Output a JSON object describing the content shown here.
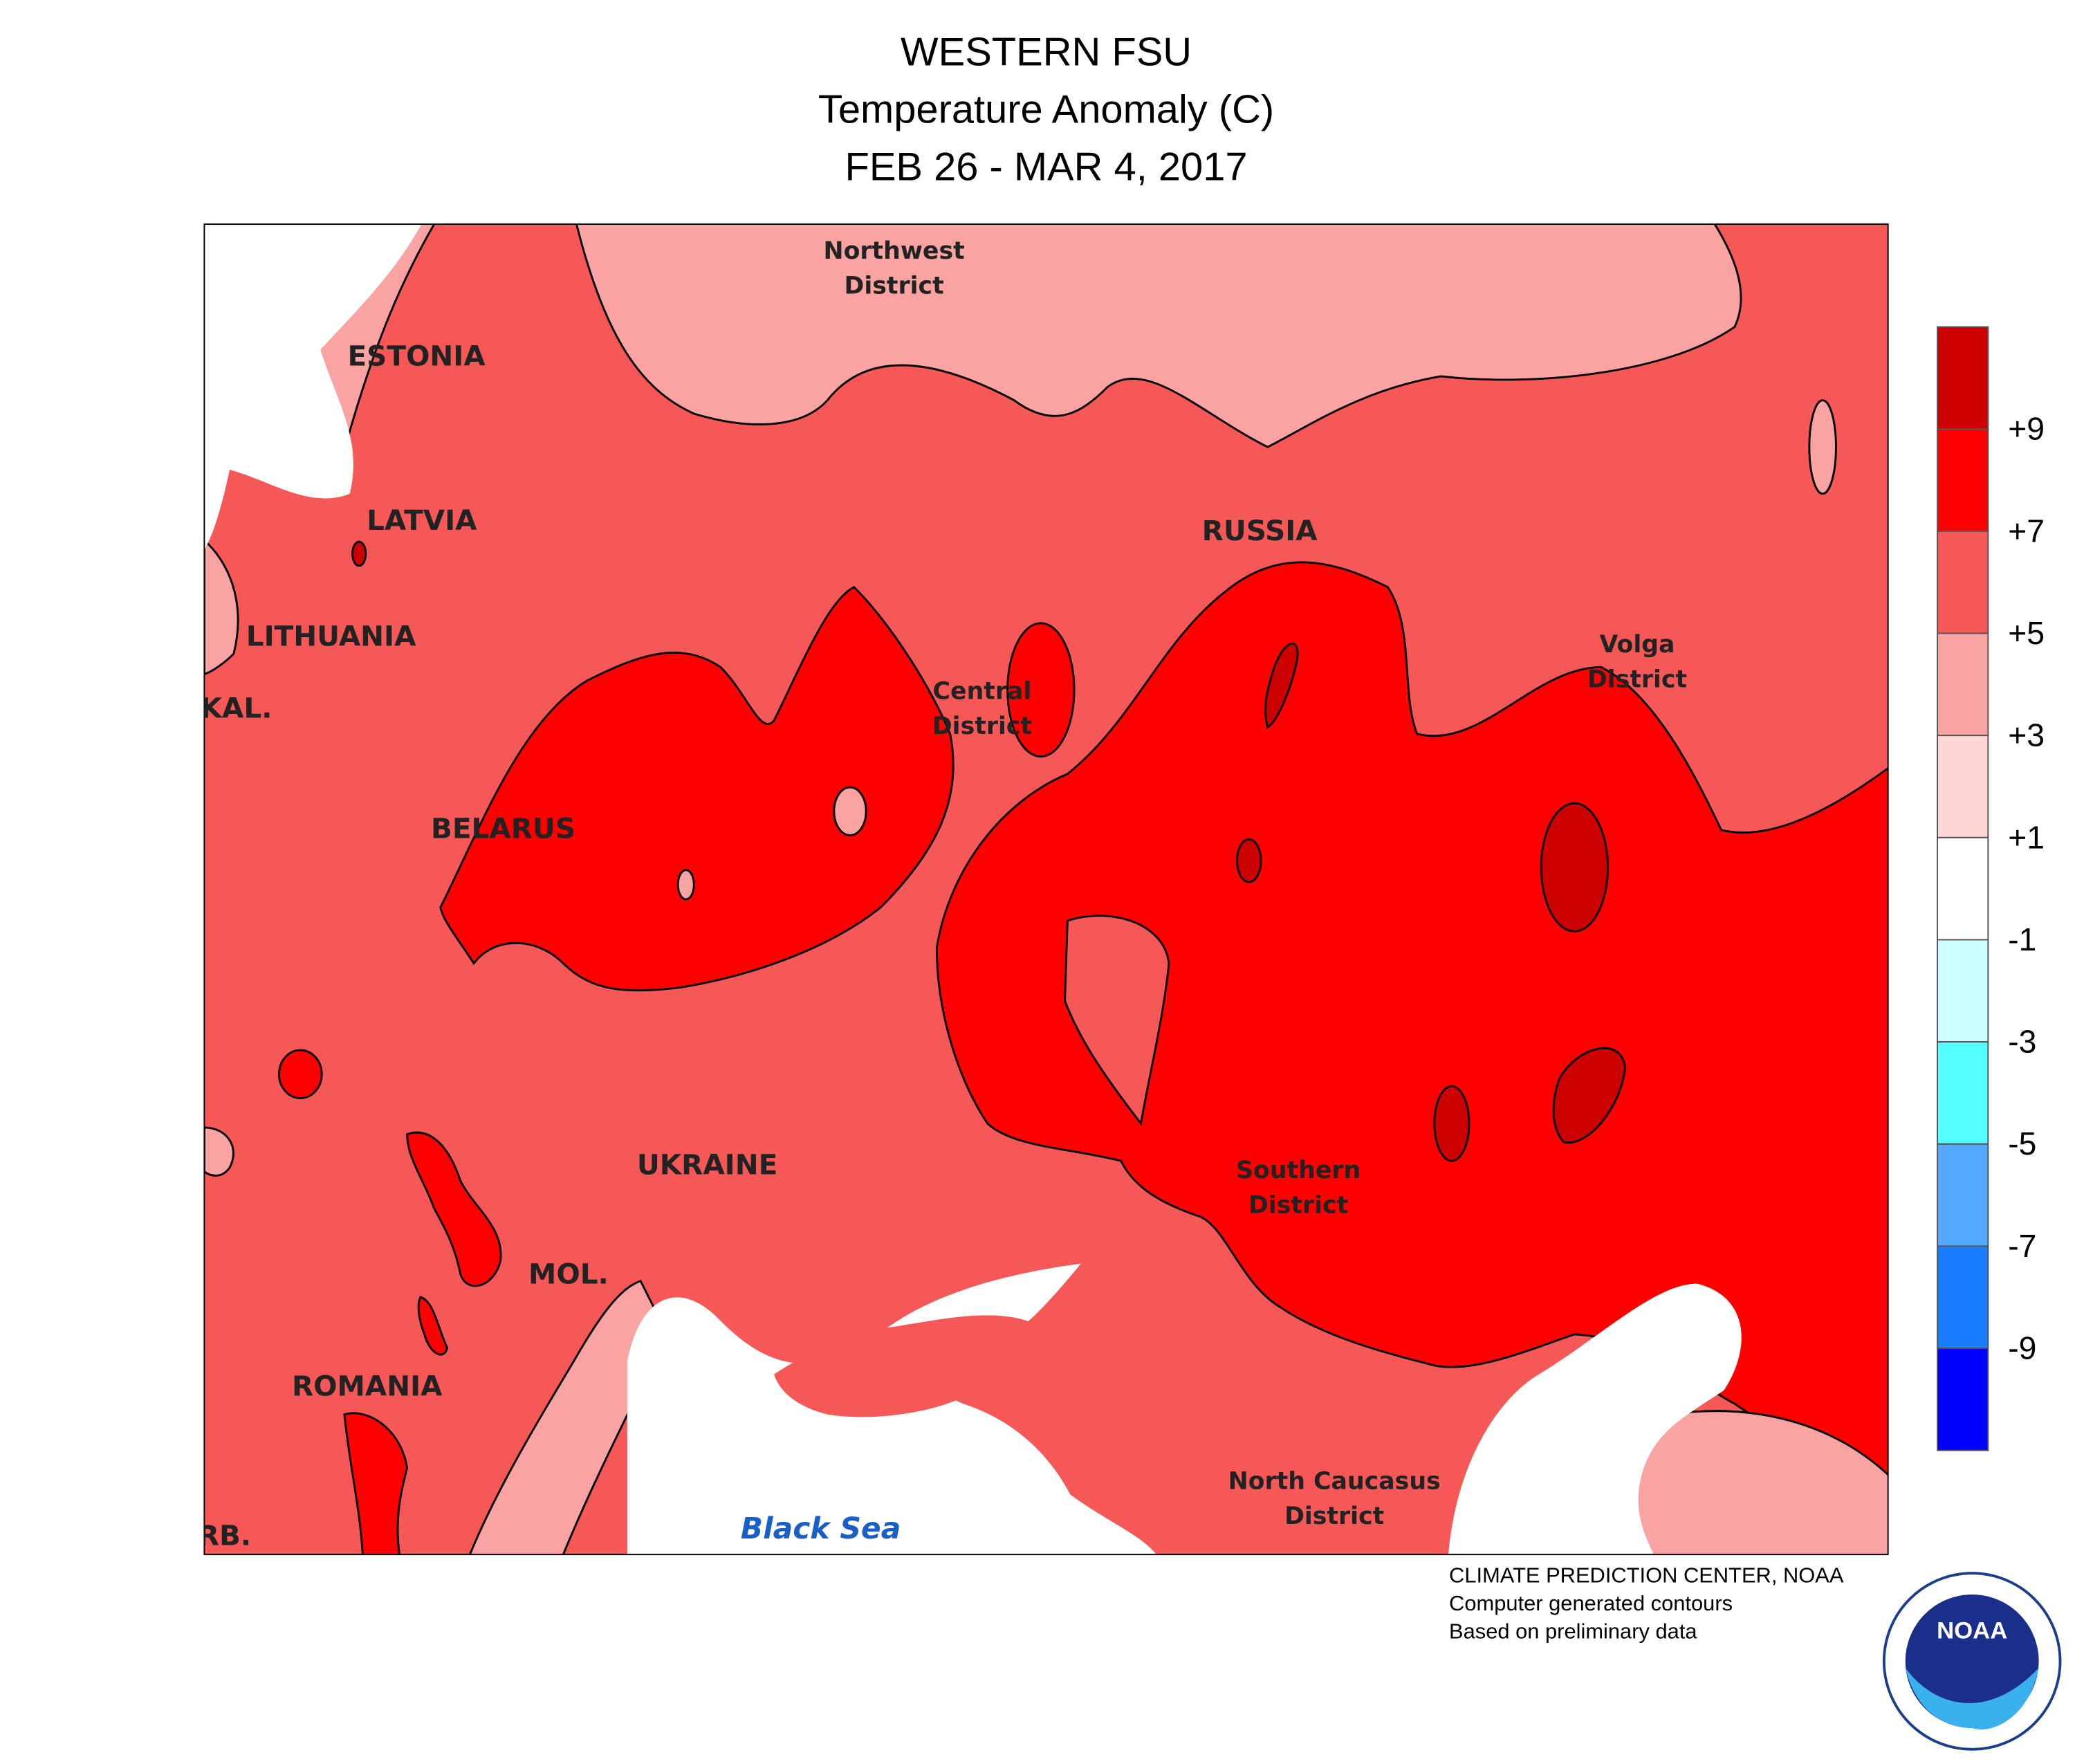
{
  "title": {
    "lines": [
      "WESTERN FSU",
      "Temperature Anomaly (C)",
      "FEB 26 - MAR 4, 2017"
    ]
  },
  "map": {
    "labels": [
      "ESTONIA",
      "LATVIA",
      "LITHUANIA",
      "KAL.",
      "BELARUS",
      "UKRAINE",
      "MOL.",
      "ROMANIA",
      "RB.",
      "RUSSIA",
      "Northwest",
      "District",
      "Central",
      "District",
      "Volga",
      "District",
      "Southern",
      "District",
      "North Caucasus",
      "District",
      "Black Sea"
    ]
  },
  "legend": {
    "labels": [
      "+9",
      "+7",
      "+5",
      "+3",
      "+1",
      "-1",
      "-3",
      "-5",
      "-7",
      "-9"
    ],
    "colors": [
      "#cc0000",
      "#ff0000",
      "#f65858",
      "#f9a3a3",
      "#fdd6d6",
      "#ffffff",
      "#ccffff",
      "#55ffff",
      "#55a8ff",
      "#1a7dff",
      "#0000ff"
    ]
  },
  "credits": [
    "CLIMATE PREDICTION CENTER, NOAA",
    "Computer generated contours",
    "Based on preliminary data"
  ],
  "logo": "NOAA"
}
